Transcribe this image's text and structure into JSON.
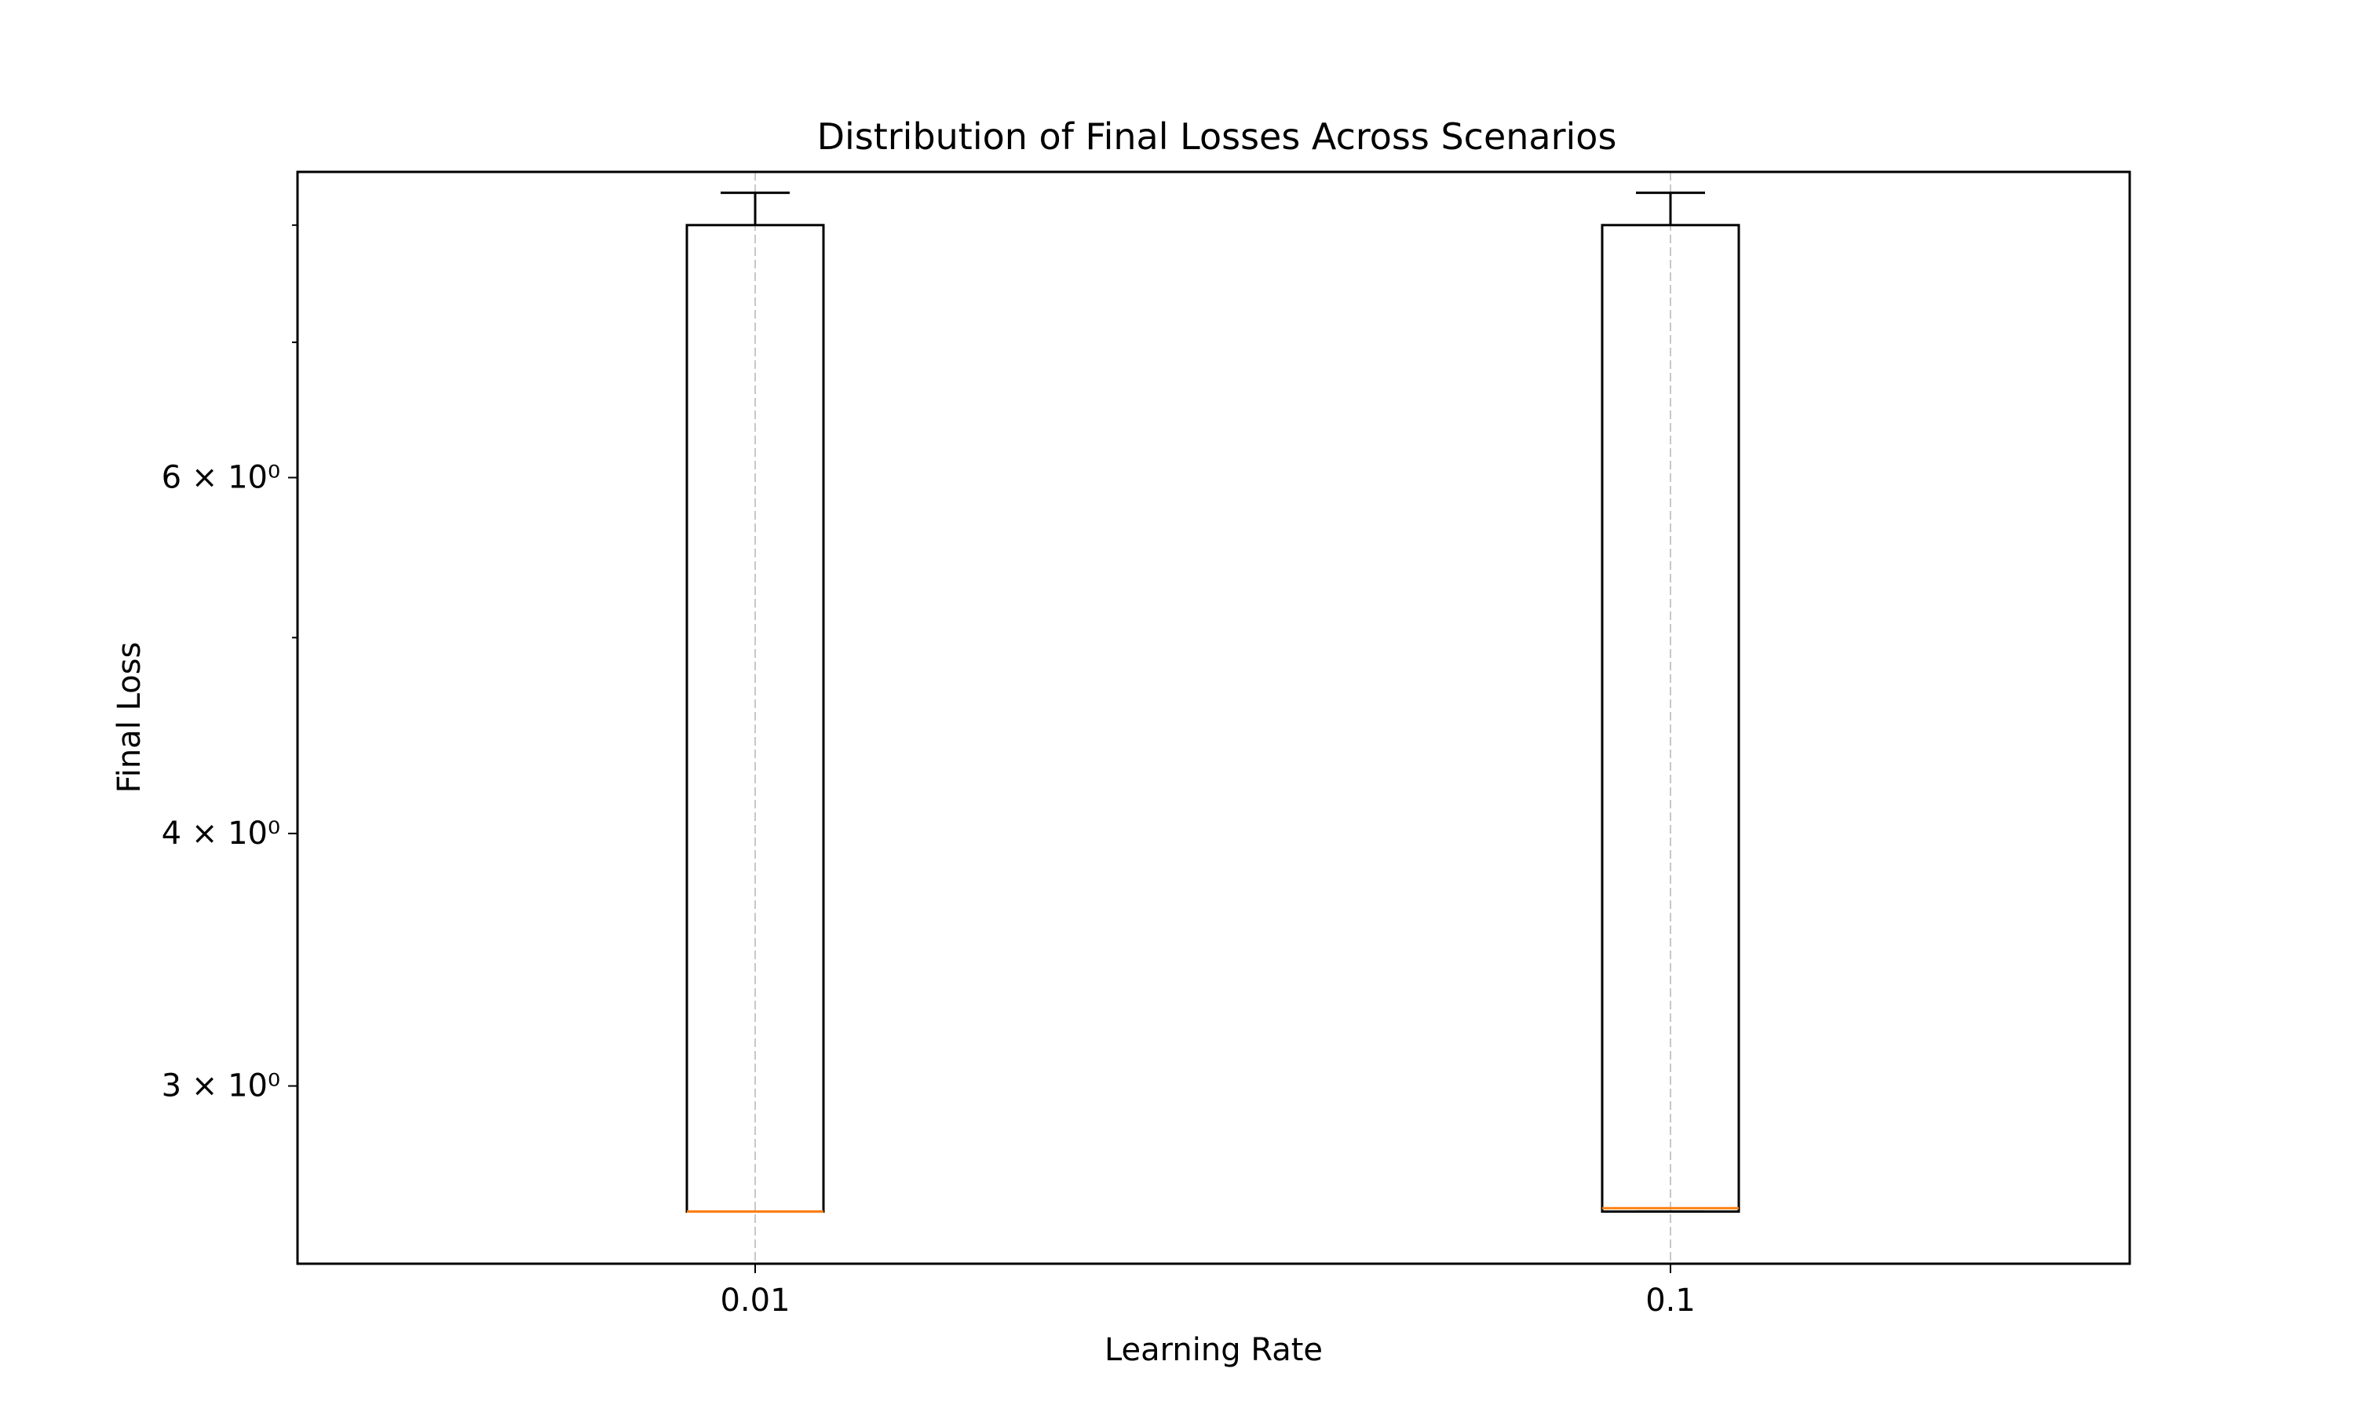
{
  "chart_data": {
    "type": "box",
    "title": "Distribution of Final Losses Across Scenarios",
    "xlabel": "Learning Rate",
    "ylabel": "Final Loss",
    "yscale": "log",
    "ylim": [
      2.45,
      8.5
    ],
    "grid": "x-dashed",
    "categories": [
      "0.01",
      "0.1"
    ],
    "boxes": [
      {
        "category": "0.01",
        "whislo": 2.6,
        "q1": 2.6,
        "median": 2.6,
        "q3": 8.0,
        "whishi": 8.3
      },
      {
        "category": "0.1",
        "whislo": 2.6,
        "q1": 2.6,
        "median": 2.61,
        "q3": 8.0,
        "whishi": 8.3
      }
    ],
    "yticks": [
      {
        "value": 3,
        "label": "3 × 10⁰",
        "major": true
      },
      {
        "value": 4,
        "label": "4 × 10⁰",
        "major": true
      },
      {
        "value": 5,
        "label": "",
        "major": false
      },
      {
        "value": 6,
        "label": "6 × 10⁰",
        "major": true
      },
      {
        "value": 7,
        "label": "",
        "major": false
      },
      {
        "value": 8,
        "label": "",
        "major": false
      }
    ],
    "colors": {
      "box": "#000000",
      "median": "#ff7f0e",
      "grid": "#b0b0b0"
    }
  }
}
